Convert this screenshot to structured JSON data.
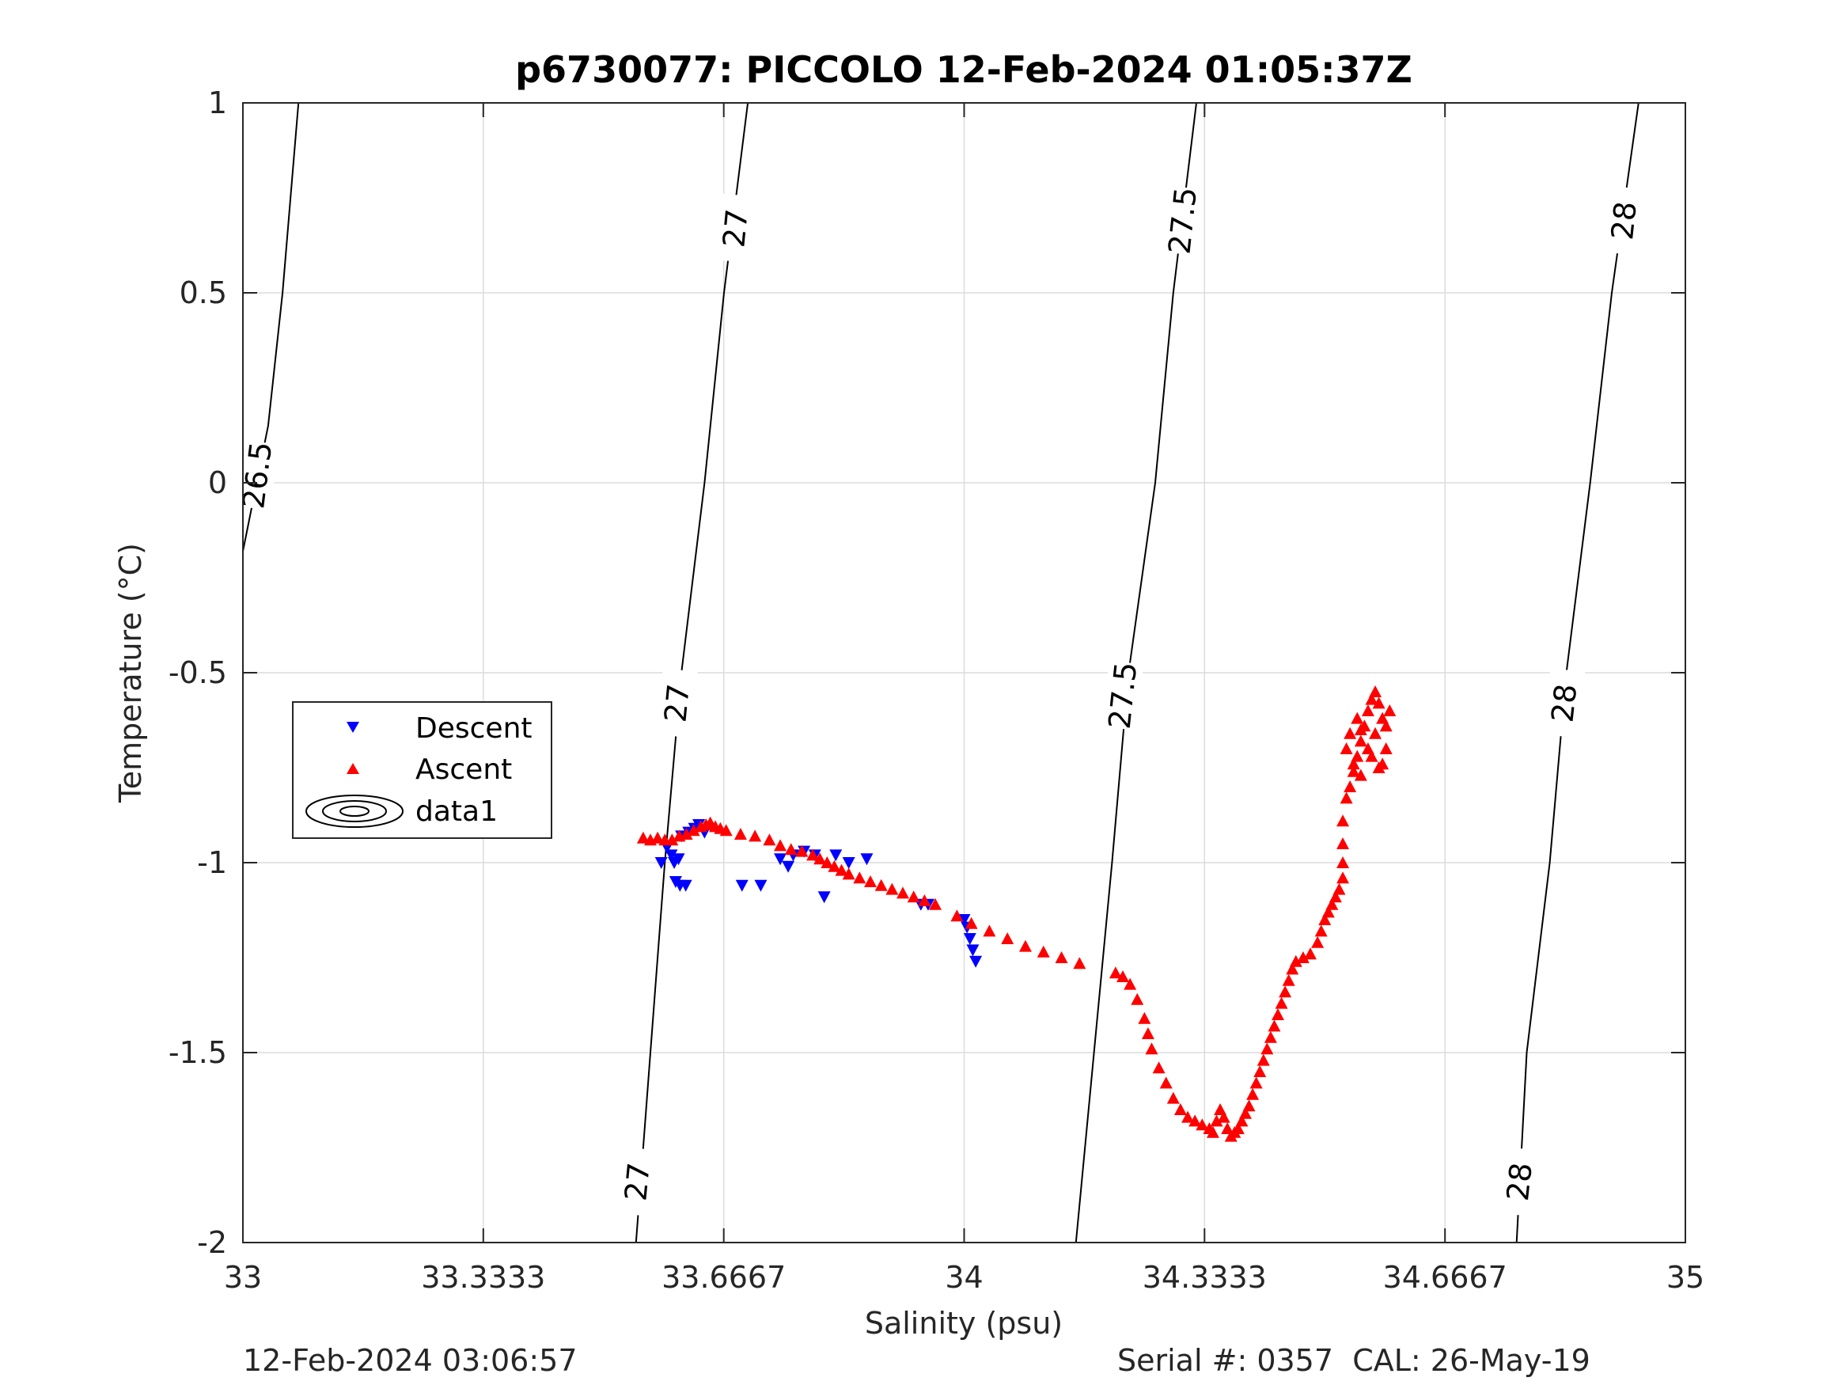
{
  "chart_data": {
    "type": "scatter",
    "title": "p6730077: PICCOLO 12-Feb-2024 01:05:37Z",
    "xlabel": "Salinity (psu)",
    "ylabel": "Temperature (°C)",
    "xlim": [
      33,
      35
    ],
    "ylim": [
      -2,
      1
    ],
    "x_ticks": [
      33,
      33.3333,
      33.6667,
      34,
      34.3333,
      34.6667,
      35
    ],
    "x_tick_labels": [
      "33",
      "33.3333",
      "33.6667",
      "34",
      "34.3333",
      "34.6667",
      "35"
    ],
    "y_ticks": [
      -2,
      -1.5,
      -1,
      -0.5,
      0,
      0.5,
      1
    ],
    "y_tick_labels": [
      "-2",
      "-1.5",
      "-1",
      "-0.5",
      "0",
      "0.5",
      "1"
    ],
    "grid": true,
    "legend": {
      "placement": "middle-left",
      "entries": [
        "Descent",
        "Ascent",
        "data1"
      ]
    },
    "colors": {
      "descent": "#0000ff",
      "ascent": "#ff0000",
      "contour": "#000000",
      "grid": "#dcdcdc",
      "axes": "#262626"
    },
    "density_contours": [
      {
        "level": "26.5",
        "points": [
          [
            33.0,
            -0.18
          ],
          [
            33.035,
            0.15
          ],
          [
            33.055,
            0.5
          ],
          [
            33.077,
            1.0
          ]
        ],
        "labels": [
          {
            "text": "26.5",
            "s": 33.02,
            "t": 0.02
          }
        ]
      },
      {
        "level": "27",
        "points": [
          [
            33.545,
            -2.0
          ],
          [
            33.565,
            -1.5
          ],
          [
            33.585,
            -1.0
          ],
          [
            33.608,
            -0.5
          ],
          [
            33.64,
            0.0
          ],
          [
            33.667,
            0.5
          ],
          [
            33.7,
            1.0
          ]
        ],
        "labels": [
          {
            "text": "27",
            "s": 33.547,
            "t": -1.84
          },
          {
            "text": "27",
            "s": 33.602,
            "t": -0.58
          },
          {
            "text": "27",
            "s": 33.683,
            "t": 0.67
          }
        ]
      },
      {
        "level": "27.5",
        "points": [
          [
            34.155,
            -2.0
          ],
          [
            34.18,
            -1.5
          ],
          [
            34.205,
            -1.0
          ],
          [
            34.228,
            -0.5
          ],
          [
            34.265,
            0.0
          ],
          [
            34.29,
            0.5
          ],
          [
            34.322,
            1.0
          ]
        ],
        "labels": [
          {
            "text": "27.5",
            "s": 34.22,
            "t": -0.56
          },
          {
            "text": "27.5",
            "s": 34.303,
            "t": 0.69
          }
        ]
      },
      {
        "level": "28",
        "points": [
          [
            34.766,
            -2.0
          ],
          [
            34.78,
            -1.5
          ],
          [
            34.812,
            -1.0
          ],
          [
            34.835,
            -0.5
          ],
          [
            34.868,
            0.0
          ],
          [
            34.898,
            0.5
          ],
          [
            34.935,
            1.0
          ]
        ],
        "labels": [
          {
            "text": "28",
            "s": 34.77,
            "t": -1.84
          },
          {
            "text": "28",
            "s": 34.832,
            "t": -0.58
          },
          {
            "text": "28",
            "s": 34.915,
            "t": 0.69
          }
        ]
      }
    ],
    "series": [
      {
        "name": "Descent",
        "marker": "triangle-down",
        "points": [
          [
            33.58,
            -1.0
          ],
          [
            33.588,
            -0.96
          ],
          [
            33.594,
            -0.98
          ],
          [
            33.598,
            -1.0
          ],
          [
            33.604,
            -0.99
          ],
          [
            33.6,
            -1.05
          ],
          [
            33.606,
            -1.06
          ],
          [
            33.614,
            -1.06
          ],
          [
            33.608,
            -0.93
          ],
          [
            33.618,
            -0.92
          ],
          [
            33.626,
            -0.91
          ],
          [
            33.632,
            -0.9
          ],
          [
            33.64,
            -0.92
          ],
          [
            33.692,
            -1.06
          ],
          [
            33.718,
            -1.06
          ],
          [
            33.745,
            -0.99
          ],
          [
            33.756,
            -1.01
          ],
          [
            33.763,
            -0.98
          ],
          [
            33.778,
            -0.97
          ],
          [
            33.793,
            -0.98
          ],
          [
            33.806,
            -1.09
          ],
          [
            33.822,
            -0.98
          ],
          [
            33.84,
            -1.0
          ],
          [
            33.865,
            -0.99
          ],
          [
            33.94,
            -1.11
          ],
          [
            33.95,
            -1.11
          ],
          [
            34.0,
            -1.15
          ],
          [
            34.004,
            -1.17
          ],
          [
            34.008,
            -1.2
          ],
          [
            34.012,
            -1.23
          ],
          [
            34.016,
            -1.26
          ]
        ]
      },
      {
        "name": "Ascent",
        "marker": "triangle-up",
        "points": [
          [
            33.555,
            -0.935
          ],
          [
            33.565,
            -0.94
          ],
          [
            33.575,
            -0.935
          ],
          [
            33.585,
            -0.94
          ],
          [
            33.595,
            -0.94
          ],
          [
            33.605,
            -0.93
          ],
          [
            33.615,
            -0.925
          ],
          [
            33.625,
            -0.915
          ],
          [
            33.635,
            -0.905
          ],
          [
            33.642,
            -0.9
          ],
          [
            33.648,
            -0.895
          ],
          [
            33.655,
            -0.905
          ],
          [
            33.662,
            -0.91
          ],
          [
            33.67,
            -0.915
          ],
          [
            33.69,
            -0.925
          ],
          [
            33.71,
            -0.93
          ],
          [
            33.73,
            -0.94
          ],
          [
            33.745,
            -0.955
          ],
          [
            33.76,
            -0.965
          ],
          [
            33.775,
            -0.97
          ],
          [
            33.79,
            -0.98
          ],
          [
            33.8,
            -0.99
          ],
          [
            33.81,
            -1.0
          ],
          [
            33.82,
            -1.01
          ],
          [
            33.83,
            -1.02
          ],
          [
            33.84,
            -1.03
          ],
          [
            33.855,
            -1.04
          ],
          [
            33.87,
            -1.05
          ],
          [
            33.885,
            -1.06
          ],
          [
            33.9,
            -1.07
          ],
          [
            33.915,
            -1.08
          ],
          [
            33.93,
            -1.09
          ],
          [
            33.945,
            -1.1
          ],
          [
            33.96,
            -1.11
          ],
          [
            33.99,
            -1.14
          ],
          [
            34.01,
            -1.16
          ],
          [
            34.035,
            -1.18
          ],
          [
            34.06,
            -1.2
          ],
          [
            34.085,
            -1.22
          ],
          [
            34.11,
            -1.235
          ],
          [
            34.135,
            -1.25
          ],
          [
            34.16,
            -1.265
          ],
          [
            34.21,
            -1.29
          ],
          [
            34.22,
            -1.3
          ],
          [
            34.23,
            -1.32
          ],
          [
            34.24,
            -1.36
          ],
          [
            34.25,
            -1.41
          ],
          [
            34.255,
            -1.45
          ],
          [
            34.26,
            -1.49
          ],
          [
            34.27,
            -1.54
          ],
          [
            34.28,
            -1.58
          ],
          [
            34.29,
            -1.62
          ],
          [
            34.3,
            -1.65
          ],
          [
            34.31,
            -1.67
          ],
          [
            34.32,
            -1.68
          ],
          [
            34.33,
            -1.69
          ],
          [
            34.34,
            -1.7
          ],
          [
            34.345,
            -1.71
          ],
          [
            34.35,
            -1.68
          ],
          [
            34.355,
            -1.65
          ],
          [
            34.36,
            -1.67
          ],
          [
            34.365,
            -1.7
          ],
          [
            34.37,
            -1.72
          ],
          [
            34.375,
            -1.71
          ],
          [
            34.38,
            -1.7
          ],
          [
            34.385,
            -1.68
          ],
          [
            34.39,
            -1.66
          ],
          [
            34.395,
            -1.64
          ],
          [
            34.4,
            -1.61
          ],
          [
            34.405,
            -1.58
          ],
          [
            34.41,
            -1.55
          ],
          [
            34.415,
            -1.52
          ],
          [
            34.42,
            -1.49
          ],
          [
            34.425,
            -1.46
          ],
          [
            34.43,
            -1.43
          ],
          [
            34.435,
            -1.4
          ],
          [
            34.44,
            -1.37
          ],
          [
            34.445,
            -1.34
          ],
          [
            34.45,
            -1.31
          ],
          [
            34.455,
            -1.28
          ],
          [
            34.46,
            -1.26
          ],
          [
            34.47,
            -1.25
          ],
          [
            34.48,
            -1.24
          ],
          [
            34.49,
            -1.21
          ],
          [
            34.495,
            -1.18
          ],
          [
            34.5,
            -1.15
          ],
          [
            34.505,
            -1.13
          ],
          [
            34.51,
            -1.11
          ],
          [
            34.515,
            -1.09
          ],
          [
            34.52,
            -1.07
          ],
          [
            34.525,
            -1.04
          ],
          [
            34.525,
            -1.0
          ],
          [
            34.525,
            -0.95
          ],
          [
            34.525,
            -0.89
          ],
          [
            34.53,
            -0.83
          ],
          [
            34.535,
            -0.8
          ],
          [
            34.54,
            -0.76
          ],
          [
            34.545,
            -0.72
          ],
          [
            34.55,
            -0.68
          ],
          [
            34.555,
            -0.64
          ],
          [
            34.56,
            -0.6
          ],
          [
            34.565,
            -0.57
          ],
          [
            34.57,
            -0.55
          ],
          [
            34.575,
            -0.58
          ],
          [
            34.58,
            -0.62
          ],
          [
            34.585,
            -0.64
          ],
          [
            34.59,
            -0.6
          ],
          [
            34.585,
            -0.7
          ],
          [
            34.575,
            -0.75
          ],
          [
            34.565,
            -0.72
          ],
          [
            34.55,
            -0.77
          ],
          [
            34.56,
            -0.7
          ],
          [
            34.57,
            -0.66
          ],
          [
            34.545,
            -0.62
          ],
          [
            34.535,
            -0.66
          ],
          [
            34.53,
            -0.7
          ],
          [
            34.54,
            -0.74
          ],
          [
            34.55,
            -0.65
          ],
          [
            34.58,
            -0.74
          ]
        ]
      }
    ]
  },
  "footer": {
    "left": "12-Feb-2024 03:06:57",
    "right": "Serial #: 0357  CAL: 26-May-19"
  }
}
